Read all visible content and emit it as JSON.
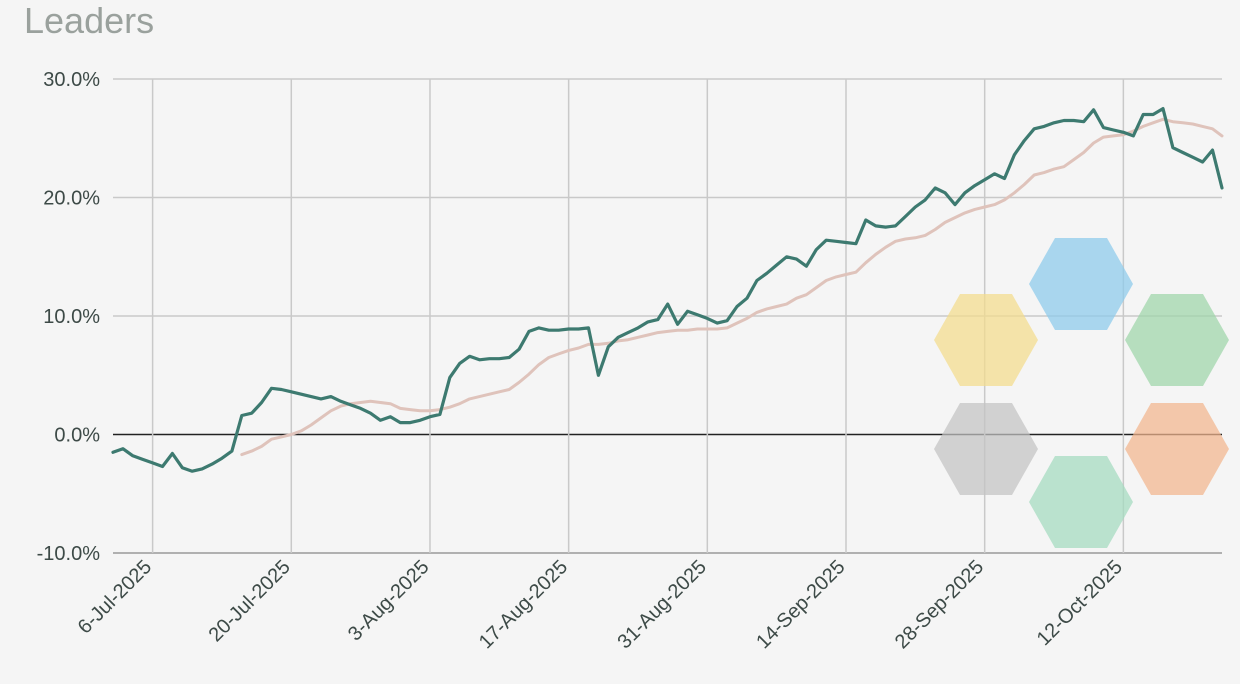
{
  "header": {
    "title": "Leaders"
  },
  "chart_data": {
    "type": "line",
    "title": "Leaders",
    "xlabel": "",
    "ylabel": "",
    "x_ticks": [
      "6-Jul-2025",
      "20-Jul-2025",
      "3-Aug-2025",
      "17-Aug-2025",
      "31-Aug-2025",
      "14-Sep-2025",
      "28-Sep-2025",
      "12-Oct-2025"
    ],
    "y_ticks": [
      "30.0%",
      "20.0%",
      "10.0%",
      "0.0%",
      "-10.0%"
    ],
    "y_tick_values": [
      30,
      20,
      10,
      0,
      -10
    ],
    "ylim": [
      -10,
      30
    ],
    "xlim": [
      "2025-07-02",
      "2025-10-21"
    ],
    "grid": true,
    "zero_line": true,
    "series": [
      {
        "color": "#3d7a70",
        "points": [
          [
            "2025-07-02",
            -1.5
          ],
          [
            "2025-07-03",
            -1.2
          ],
          [
            "2025-07-04",
            -1.8
          ],
          [
            "2025-07-05",
            -2.1
          ],
          [
            "2025-07-06",
            -2.4
          ],
          [
            "2025-07-07",
            -2.7
          ],
          [
            "2025-07-08",
            -1.6
          ],
          [
            "2025-07-09",
            -2.8
          ],
          [
            "2025-07-10",
            -3.1
          ],
          [
            "2025-07-11",
            -2.9
          ],
          [
            "2025-07-12",
            -2.5
          ],
          [
            "2025-07-13",
            -2.0
          ],
          [
            "2025-07-14",
            -1.4
          ],
          [
            "2025-07-15",
            1.6
          ],
          [
            "2025-07-16",
            1.8
          ],
          [
            "2025-07-17",
            2.7
          ],
          [
            "2025-07-18",
            3.9
          ],
          [
            "2025-07-19",
            3.8
          ],
          [
            "2025-07-20",
            3.6
          ],
          [
            "2025-07-21",
            3.4
          ],
          [
            "2025-07-22",
            3.2
          ],
          [
            "2025-07-23",
            3.0
          ],
          [
            "2025-07-24",
            3.2
          ],
          [
            "2025-07-25",
            2.8
          ],
          [
            "2025-07-26",
            2.5
          ],
          [
            "2025-07-27",
            2.2
          ],
          [
            "2025-07-28",
            1.8
          ],
          [
            "2025-07-29",
            1.2
          ],
          [
            "2025-07-30",
            1.5
          ],
          [
            "2025-07-31",
            1.0
          ],
          [
            "2025-08-01",
            1.0
          ],
          [
            "2025-08-02",
            1.2
          ],
          [
            "2025-08-03",
            1.5
          ],
          [
            "2025-08-04",
            1.7
          ],
          [
            "2025-08-05",
            4.8
          ],
          [
            "2025-08-06",
            6.0
          ],
          [
            "2025-08-07",
            6.6
          ],
          [
            "2025-08-08",
            6.3
          ],
          [
            "2025-08-09",
            6.4
          ],
          [
            "2025-08-10",
            6.4
          ],
          [
            "2025-08-11",
            6.5
          ],
          [
            "2025-08-12",
            7.2
          ],
          [
            "2025-08-13",
            8.7
          ],
          [
            "2025-08-14",
            9.0
          ],
          [
            "2025-08-15",
            8.8
          ],
          [
            "2025-08-16",
            8.8
          ],
          [
            "2025-08-17",
            8.9
          ],
          [
            "2025-08-18",
            8.9
          ],
          [
            "2025-08-19",
            9.0
          ],
          [
            "2025-08-20",
            5.0
          ],
          [
            "2025-08-21",
            7.4
          ],
          [
            "2025-08-22",
            8.2
          ],
          [
            "2025-08-23",
            8.6
          ],
          [
            "2025-08-24",
            9.0
          ],
          [
            "2025-08-25",
            9.5
          ],
          [
            "2025-08-26",
            9.7
          ],
          [
            "2025-08-27",
            11.0
          ],
          [
            "2025-08-28",
            9.3
          ],
          [
            "2025-08-29",
            10.4
          ],
          [
            "2025-08-30",
            10.1
          ],
          [
            "2025-08-31",
            9.8
          ],
          [
            "2025-09-01",
            9.4
          ],
          [
            "2025-09-02",
            9.6
          ],
          [
            "2025-09-03",
            10.8
          ],
          [
            "2025-09-04",
            11.5
          ],
          [
            "2025-09-05",
            13.0
          ],
          [
            "2025-09-06",
            13.6
          ],
          [
            "2025-09-07",
            14.3
          ],
          [
            "2025-09-08",
            15.0
          ],
          [
            "2025-09-09",
            14.8
          ],
          [
            "2025-09-10",
            14.2
          ],
          [
            "2025-09-11",
            15.6
          ],
          [
            "2025-09-12",
            16.4
          ],
          [
            "2025-09-13",
            16.3
          ],
          [
            "2025-09-14",
            16.2
          ],
          [
            "2025-09-15",
            16.1
          ],
          [
            "2025-09-16",
            18.1
          ],
          [
            "2025-09-17",
            17.6
          ],
          [
            "2025-09-18",
            17.5
          ],
          [
            "2025-09-19",
            17.6
          ],
          [
            "2025-09-20",
            18.4
          ],
          [
            "2025-09-21",
            19.2
          ],
          [
            "2025-09-22",
            19.8
          ],
          [
            "2025-09-23",
            20.8
          ],
          [
            "2025-09-24",
            20.4
          ],
          [
            "2025-09-25",
            19.4
          ],
          [
            "2025-09-26",
            20.4
          ],
          [
            "2025-09-27",
            21.0
          ],
          [
            "2025-09-28",
            21.5
          ],
          [
            "2025-09-29",
            22.0
          ],
          [
            "2025-09-30",
            21.6
          ],
          [
            "2025-10-01",
            23.6
          ],
          [
            "2025-10-02",
            24.8
          ],
          [
            "2025-10-03",
            25.8
          ],
          [
            "2025-10-04",
            26.0
          ],
          [
            "2025-10-05",
            26.3
          ],
          [
            "2025-10-06",
            26.5
          ],
          [
            "2025-10-07",
            26.5
          ],
          [
            "2025-10-08",
            26.4
          ],
          [
            "2025-10-09",
            27.4
          ],
          [
            "2025-10-10",
            25.9
          ],
          [
            "2025-10-11",
            25.7
          ],
          [
            "2025-10-12",
            25.5
          ],
          [
            "2025-10-13",
            25.2
          ],
          [
            "2025-10-14",
            27.0
          ],
          [
            "2025-10-15",
            27.0
          ],
          [
            "2025-10-16",
            27.5
          ],
          [
            "2025-10-17",
            24.2
          ],
          [
            "2025-10-18",
            23.8
          ],
          [
            "2025-10-19",
            23.4
          ],
          [
            "2025-10-20",
            23.0
          ],
          [
            "2025-10-21",
            24.0
          ],
          [
            "2025-10-21T23:00",
            20.8
          ]
        ]
      },
      {
        "color": "#dfc3bb",
        "points": [
          [
            "2025-07-15",
            -1.7
          ],
          [
            "2025-07-16",
            -1.4
          ],
          [
            "2025-07-17",
            -1.0
          ],
          [
            "2025-07-18",
            -0.4
          ],
          [
            "2025-07-19",
            -0.2
          ],
          [
            "2025-07-20",
            0.0
          ],
          [
            "2025-07-21",
            0.3
          ],
          [
            "2025-07-22",
            0.8
          ],
          [
            "2025-07-23",
            1.4
          ],
          [
            "2025-07-24",
            2.0
          ],
          [
            "2025-07-25",
            2.4
          ],
          [
            "2025-07-26",
            2.6
          ],
          [
            "2025-07-27",
            2.7
          ],
          [
            "2025-07-28",
            2.8
          ],
          [
            "2025-07-29",
            2.7
          ],
          [
            "2025-07-30",
            2.6
          ],
          [
            "2025-07-31",
            2.2
          ],
          [
            "2025-08-01",
            2.1
          ],
          [
            "2025-08-02",
            2.0
          ],
          [
            "2025-08-03",
            2.0
          ],
          [
            "2025-08-04",
            2.1
          ],
          [
            "2025-08-05",
            2.3
          ],
          [
            "2025-08-06",
            2.6
          ],
          [
            "2025-08-07",
            3.0
          ],
          [
            "2025-08-08",
            3.2
          ],
          [
            "2025-08-09",
            3.4
          ],
          [
            "2025-08-10",
            3.6
          ],
          [
            "2025-08-11",
            3.8
          ],
          [
            "2025-08-12",
            4.4
          ],
          [
            "2025-08-13",
            5.1
          ],
          [
            "2025-08-14",
            5.9
          ],
          [
            "2025-08-15",
            6.5
          ],
          [
            "2025-08-16",
            6.8
          ],
          [
            "2025-08-17",
            7.1
          ],
          [
            "2025-08-18",
            7.3
          ],
          [
            "2025-08-19",
            7.6
          ],
          [
            "2025-08-20",
            7.6
          ],
          [
            "2025-08-21",
            7.7
          ],
          [
            "2025-08-22",
            7.9
          ],
          [
            "2025-08-23",
            8.0
          ],
          [
            "2025-08-24",
            8.2
          ],
          [
            "2025-08-25",
            8.4
          ],
          [
            "2025-08-26",
            8.6
          ],
          [
            "2025-08-27",
            8.7
          ],
          [
            "2025-08-28",
            8.8
          ],
          [
            "2025-08-29",
            8.8
          ],
          [
            "2025-08-30",
            8.9
          ],
          [
            "2025-08-31",
            8.9
          ],
          [
            "2025-09-01",
            8.9
          ],
          [
            "2025-09-02",
            9.0
          ],
          [
            "2025-09-03",
            9.4
          ],
          [
            "2025-09-04",
            9.8
          ],
          [
            "2025-09-05",
            10.3
          ],
          [
            "2025-09-06",
            10.6
          ],
          [
            "2025-09-07",
            10.8
          ],
          [
            "2025-09-08",
            11.0
          ],
          [
            "2025-09-09",
            11.5
          ],
          [
            "2025-09-10",
            11.8
          ],
          [
            "2025-09-11",
            12.4
          ],
          [
            "2025-09-12",
            13.0
          ],
          [
            "2025-09-13",
            13.3
          ],
          [
            "2025-09-14",
            13.5
          ],
          [
            "2025-09-15",
            13.7
          ],
          [
            "2025-09-16",
            14.5
          ],
          [
            "2025-09-17",
            15.2
          ],
          [
            "2025-09-18",
            15.8
          ],
          [
            "2025-09-19",
            16.3
          ],
          [
            "2025-09-20",
            16.5
          ],
          [
            "2025-09-21",
            16.6
          ],
          [
            "2025-09-22",
            16.8
          ],
          [
            "2025-09-23",
            17.3
          ],
          [
            "2025-09-24",
            17.9
          ],
          [
            "2025-09-25",
            18.3
          ],
          [
            "2025-09-26",
            18.7
          ],
          [
            "2025-09-27",
            19.0
          ],
          [
            "2025-09-28",
            19.2
          ],
          [
            "2025-09-29",
            19.4
          ],
          [
            "2025-09-30",
            19.8
          ],
          [
            "2025-10-01",
            20.4
          ],
          [
            "2025-10-02",
            21.1
          ],
          [
            "2025-10-03",
            21.9
          ],
          [
            "2025-10-04",
            22.1
          ],
          [
            "2025-10-05",
            22.4
          ],
          [
            "2025-10-06",
            22.6
          ],
          [
            "2025-10-07",
            23.2
          ],
          [
            "2025-10-08",
            23.8
          ],
          [
            "2025-10-09",
            24.6
          ],
          [
            "2025-10-10",
            25.1
          ],
          [
            "2025-10-11",
            25.2
          ],
          [
            "2025-10-12",
            25.3
          ],
          [
            "2025-10-13",
            25.6
          ],
          [
            "2025-10-14",
            26.0
          ],
          [
            "2025-10-15",
            26.3
          ],
          [
            "2025-10-16",
            26.6
          ],
          [
            "2025-10-17",
            26.4
          ],
          [
            "2025-10-18",
            26.3
          ],
          [
            "2025-10-19",
            26.2
          ],
          [
            "2025-10-20",
            26.0
          ],
          [
            "2025-10-21",
            25.8
          ],
          [
            "2025-10-21T23:00",
            25.2
          ]
        ]
      }
    ]
  },
  "overlay": {
    "hexagons": [
      {
        "name": "yellow",
        "color": "#f4dd8c"
      },
      {
        "name": "blue",
        "color": "#8ccbec"
      },
      {
        "name": "green",
        "color": "#9ed6a9"
      },
      {
        "name": "gray",
        "color": "#c3c3c3"
      },
      {
        "name": "mint",
        "color": "#a4dbbf"
      },
      {
        "name": "orange",
        "color": "#f3b58d"
      }
    ]
  }
}
